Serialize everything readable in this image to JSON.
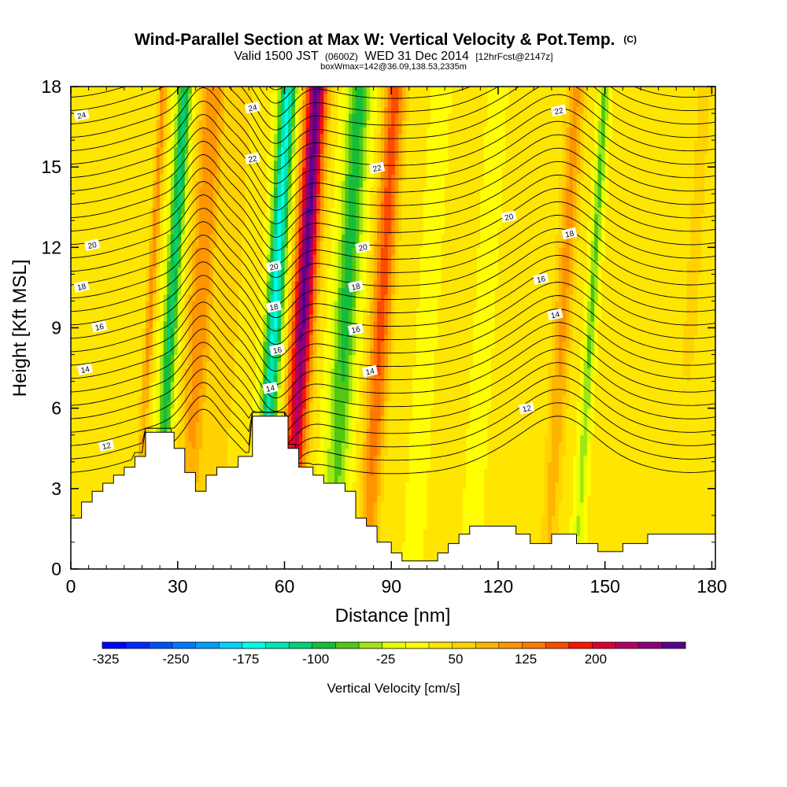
{
  "title": {
    "main": "Wind-Parallel Section at Max W: Vertical Velocity & Pot.Temp.",
    "main_unit": "(C)",
    "valid_a": "Valid 1500 JST",
    "valid_utc": "(0600Z)",
    "valid_b": "WED 31 Dec 2014",
    "fcst": "[12hrFcst@2147z]",
    "box": "boxWmax=142@36.09,138.53,2335m"
  },
  "chart_data": {
    "type": "heatmap",
    "xlabel": "Distance [nm]",
    "ylabel": "Height [Kft MSL]",
    "xlim": [
      0,
      181
    ],
    "ylim": [
      0,
      18
    ],
    "x_ticks": [
      "0",
      "30",
      "60",
      "90",
      "120",
      "150",
      "180"
    ],
    "y_ticks": [
      "0",
      "3",
      "6",
      "9",
      "12",
      "15",
      "18"
    ],
    "colorbar": {
      "label": "Vertical Velocity [cm/s]",
      "tick_labels": [
        "-325",
        "-250",
        "-175",
        "-100",
        "-25",
        "50",
        "125",
        "200"
      ],
      "tick_values": [
        -325,
        -250,
        -175,
        -100,
        -25,
        50,
        125,
        200
      ],
      "levels": [
        -325,
        -300,
        -275,
        -250,
        -225,
        -200,
        -175,
        -150,
        -125,
        -100,
        -75,
        -50,
        -25,
        0,
        25,
        50,
        75,
        100,
        125,
        150,
        175,
        200,
        225,
        250
      ],
      "colors": [
        "#0000ff",
        "#0028ff",
        "#0050ff",
        "#0078ff",
        "#00a0ff",
        "#00d2ff",
        "#00ffe6",
        "#00e6b4",
        "#00d278",
        "#14be3c",
        "#50c814",
        "#a0e614",
        "#e6ff00",
        "#ffff00",
        "#ffe600",
        "#ffd200",
        "#ffb400",
        "#ff9600",
        "#ff7800",
        "#ff4b00",
        "#ff1400",
        "#dc0032",
        "#b40064",
        "#8c0078",
        "#5a008c"
      ]
    },
    "velocity_bands": [
      {
        "x": 22,
        "w": 1.2,
        "v": 80
      },
      {
        "x": 28,
        "w": 2.2,
        "v": -140
      },
      {
        "x": 36,
        "w": 3.5,
        "v": 90
      },
      {
        "x": 44,
        "w": 3.0,
        "v": 40
      },
      {
        "x": 57,
        "w": 2.5,
        "v": -190
      },
      {
        "x": 65,
        "w": 3.0,
        "v": 250
      },
      {
        "x": 77,
        "w": 3.5,
        "v": -120
      },
      {
        "x": 87,
        "w": 2.8,
        "v": 130
      },
      {
        "x": 100,
        "w": 3.0,
        "v": -20
      },
      {
        "x": 116,
        "w": 6.0,
        "v": -10
      },
      {
        "x": 138,
        "w": 2.5,
        "v": 75
      },
      {
        "x": 146,
        "w": 1.5,
        "v": -90
      },
      {
        "x": 174,
        "w": 4.0,
        "v": 20
      }
    ],
    "terrain": [
      [
        0,
        1.9
      ],
      [
        3,
        1.9
      ],
      [
        3,
        2.5
      ],
      [
        6,
        2.5
      ],
      [
        6,
        2.9
      ],
      [
        9,
        2.9
      ],
      [
        9,
        3.2
      ],
      [
        12,
        3.2
      ],
      [
        12,
        3.5
      ],
      [
        15,
        3.5
      ],
      [
        15,
        3.8
      ],
      [
        18,
        3.8
      ],
      [
        18,
        4.2
      ],
      [
        21,
        4.2
      ],
      [
        21,
        5.1
      ],
      [
        29,
        5.1
      ],
      [
        29,
        4.5
      ],
      [
        32,
        4.5
      ],
      [
        32,
        3.6
      ],
      [
        35,
        3.6
      ],
      [
        35,
        2.9
      ],
      [
        38,
        2.9
      ],
      [
        38,
        3.5
      ],
      [
        41,
        3.5
      ],
      [
        41,
        3.8
      ],
      [
        47,
        3.8
      ],
      [
        47,
        4.2
      ],
      [
        51,
        4.2
      ],
      [
        51,
        5.7
      ],
      [
        61,
        5.7
      ],
      [
        61,
        4.5
      ],
      [
        64,
        4.5
      ],
      [
        64,
        3.8
      ],
      [
        68,
        3.8
      ],
      [
        68,
        3.5
      ],
      [
        71,
        3.5
      ],
      [
        71,
        3.2
      ],
      [
        77,
        3.2
      ],
      [
        77,
        2.9
      ],
      [
        80,
        2.9
      ],
      [
        80,
        1.9
      ],
      [
        83,
        1.9
      ],
      [
        83,
        1.6
      ],
      [
        86,
        1.6
      ],
      [
        86,
        1.0
      ],
      [
        90,
        1.0
      ],
      [
        90,
        0.6
      ],
      [
        93,
        0.6
      ],
      [
        93,
        0.3
      ],
      [
        103,
        0.3
      ],
      [
        103,
        0.6
      ],
      [
        106,
        0.6
      ],
      [
        106,
        0.95
      ],
      [
        109,
        0.95
      ],
      [
        109,
        1.3
      ],
      [
        112,
        1.3
      ],
      [
        112,
        1.6
      ],
      [
        125,
        1.6
      ],
      [
        125,
        1.3
      ],
      [
        129,
        1.3
      ],
      [
        129,
        0.95
      ],
      [
        135,
        0.95
      ],
      [
        135,
        1.3
      ],
      [
        142,
        1.3
      ],
      [
        142,
        0.95
      ],
      [
        148,
        0.95
      ],
      [
        148,
        0.65
      ],
      [
        155,
        0.65
      ],
      [
        155,
        0.95
      ],
      [
        162,
        0.95
      ],
      [
        162,
        1.3
      ],
      [
        181,
        1.3
      ]
    ],
    "theta_contours": [
      {
        "value": "12",
        "base": 5.0,
        "labels": [
          [
            10,
            1
          ],
          [
            128,
            1
          ]
        ]
      },
      {
        "value": "14",
        "base": 8.0,
        "labels": [
          [
            4,
            1
          ],
          [
            56,
            1
          ],
          [
            84,
            1
          ],
          [
            136,
            1
          ]
        ]
      },
      {
        "value": "16",
        "base": 9.5,
        "labels": [
          [
            8,
            1
          ],
          [
            58,
            1
          ],
          [
            80,
            1
          ],
          [
            132,
            1
          ]
        ]
      },
      {
        "value": "18",
        "base": 11.1,
        "labels": [
          [
            3,
            1
          ],
          [
            57,
            1
          ],
          [
            80,
            1
          ],
          [
            140,
            1
          ]
        ]
      },
      {
        "value": "20",
        "base": 12.6,
        "labels": [
          [
            6,
            1
          ],
          [
            57,
            1
          ],
          [
            82,
            1
          ],
          [
            123,
            1
          ]
        ]
      },
      {
        "value": "22",
        "base": 15.6,
        "labels": [
          [
            51,
            1
          ],
          [
            86,
            1
          ],
          [
            137,
            1
          ]
        ]
      },
      {
        "value": "24",
        "base": 17.5,
        "labels": [
          [
            3,
            1
          ],
          [
            51,
            1
          ]
        ]
      }
    ]
  }
}
